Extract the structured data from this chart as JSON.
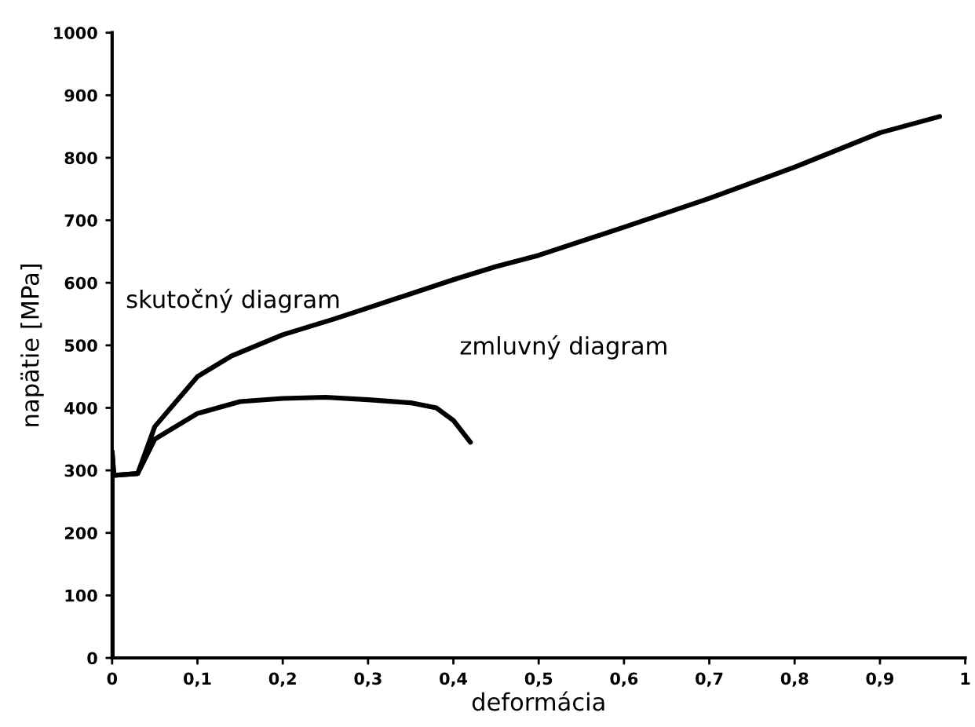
{
  "chart_data": {
    "type": "line",
    "xlabel": "deformácia",
    "ylabel": "napätie [MPa]",
    "xlim": [
      0,
      1
    ],
    "ylim": [
      0,
      1000
    ],
    "xticks": [
      0,
      {
        "value": 0.1,
        "label": "0,1"
      },
      {
        "value": 0.2,
        "label": "0,2"
      },
      {
        "value": 0.3,
        "label": "0,3"
      },
      {
        "value": 0.4,
        "label": "0,4"
      },
      {
        "value": 0.5,
        "label": "0,5"
      },
      {
        "value": 0.6,
        "label": "0,6"
      },
      {
        "value": 0.7,
        "label": "0,7"
      },
      {
        "value": 0.8,
        "label": "0,8"
      },
      {
        "value": 0.9,
        "label": "0,9"
      },
      1
    ],
    "yticks": [
      0,
      100,
      200,
      300,
      400,
      500,
      600,
      700,
      800,
      900,
      1000
    ],
    "grid": false,
    "legend": false,
    "marker": "none",
    "line_style": "solid",
    "series": [
      {
        "name": "skutočný diagram",
        "color": "#000000",
        "x": [
          0,
          0,
          0.002,
          0.03,
          0.05,
          0.1,
          0.14,
          0.2,
          0.26,
          0.3,
          0.4,
          0.45,
          0.5,
          0.6,
          0.7,
          0.8,
          0.9,
          0.97
        ],
        "values": [
          0,
          330,
          292,
          295,
          370,
          450,
          483,
          517,
          542,
          560,
          605,
          626,
          644,
          689,
          735,
          785,
          840,
          866
        ]
      },
      {
        "name": "zmluvný diagram",
        "color": "#000000",
        "x": [
          0,
          0,
          0.002,
          0.03,
          0.05,
          0.1,
          0.15,
          0.2,
          0.25,
          0.3,
          0.35,
          0.38,
          0.4,
          0.42
        ],
        "values": [
          0,
          330,
          292,
          295,
          350,
          391,
          410,
          415,
          417,
          413,
          408,
          400,
          380,
          345
        ]
      }
    ]
  }
}
